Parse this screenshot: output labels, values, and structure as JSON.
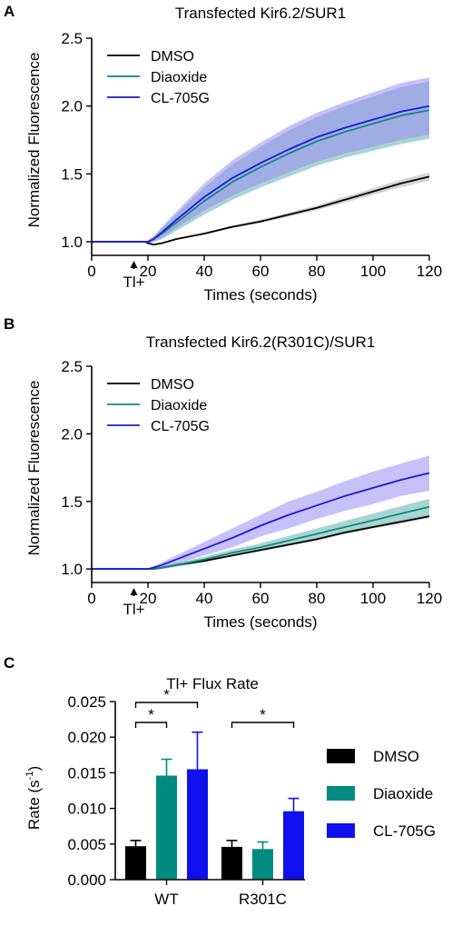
{
  "panels": {
    "a": {
      "label": "A"
    },
    "b": {
      "label": "B"
    },
    "c": {
      "label": "C"
    }
  },
  "colors": {
    "dmso": "#000000",
    "dmso_band": "#b0b0b0",
    "diaoxide": "#13877e",
    "diaoxide_band": "#5fb4ad",
    "cl705g": "#1a1adb",
    "cl705g_band": "#9b8df2",
    "bar_dmso": "#000000",
    "bar_diaoxide": "#008a80",
    "bar_cl705g": "#1010ee"
  },
  "chart_data": [
    {
      "type": "line",
      "title": "Transfected Kir6.2/SUR1",
      "xlabel": "Times (seconds)",
      "ylabel": "Normalized Fluorescence",
      "xlim": [
        0,
        120
      ],
      "ylim": [
        0.9,
        2.5
      ],
      "xticks": [
        0,
        20,
        40,
        60,
        80,
        100,
        120
      ],
      "yticks": [
        1.0,
        1.5,
        2.0,
        2.5
      ],
      "annotation": {
        "text": "Tl+",
        "x": 15
      },
      "legend": "top-left",
      "x": [
        0,
        10,
        17,
        19,
        20,
        22,
        25,
        30,
        40,
        50,
        60,
        70,
        80,
        90,
        100,
        110,
        120
      ],
      "series": [
        {
          "name": "DMSO",
          "color_key": "dmso",
          "band_key": "dmso_band",
          "values": [
            1.0,
            1.0,
            1.0,
            1.0,
            0.99,
            0.98,
            0.99,
            1.02,
            1.06,
            1.11,
            1.15,
            1.2,
            1.25,
            1.31,
            1.37,
            1.43,
            1.48
          ],
          "band": [
            0.005,
            0.005,
            0.005,
            0.005,
            0.005,
            0.005,
            0.005,
            0.006,
            0.008,
            0.01,
            0.012,
            0.015,
            0.018,
            0.022,
            0.025,
            0.028,
            0.03
          ]
        },
        {
          "name": "Diaoxide",
          "color_key": "diaoxide",
          "band_key": "diaoxide_band",
          "values": [
            1.0,
            1.0,
            1.0,
            1.0,
            1.0,
            1.02,
            1.06,
            1.14,
            1.3,
            1.44,
            1.55,
            1.65,
            1.74,
            1.81,
            1.87,
            1.93,
            1.97
          ],
          "band": [
            0.005,
            0.005,
            0.005,
            0.005,
            0.01,
            0.02,
            0.04,
            0.06,
            0.1,
            0.13,
            0.15,
            0.17,
            0.18,
            0.19,
            0.2,
            0.21,
            0.21
          ]
        },
        {
          "name": "CL-705G",
          "color_key": "cl705g",
          "band_key": "cl705g_band",
          "values": [
            1.0,
            1.0,
            1.0,
            1.0,
            1.0,
            1.02,
            1.07,
            1.16,
            1.33,
            1.47,
            1.58,
            1.68,
            1.77,
            1.84,
            1.9,
            1.96,
            2.0
          ],
          "band": [
            0.005,
            0.005,
            0.005,
            0.005,
            0.01,
            0.02,
            0.04,
            0.06,
            0.1,
            0.13,
            0.15,
            0.17,
            0.18,
            0.19,
            0.2,
            0.21,
            0.21
          ]
        }
      ]
    },
    {
      "type": "line",
      "title": "Transfected Kir6.2(R301C)/SUR1",
      "xlabel": "Times (seconds)",
      "ylabel": "Normalized Fluorescence",
      "xlim": [
        0,
        120
      ],
      "ylim": [
        0.9,
        2.5
      ],
      "xticks": [
        0,
        20,
        40,
        60,
        80,
        100,
        120
      ],
      "yticks": [
        1.0,
        1.5,
        2.0,
        2.5
      ],
      "annotation": {
        "text": "Tl+",
        "x": 15
      },
      "legend": "top-left",
      "x": [
        0,
        10,
        17,
        19,
        20,
        22,
        25,
        30,
        40,
        50,
        60,
        70,
        80,
        90,
        100,
        110,
        120
      ],
      "series": [
        {
          "name": "DMSO",
          "color_key": "dmso",
          "band_key": "dmso_band",
          "values": [
            1.0,
            1.0,
            1.0,
            1.0,
            1.0,
            1.0,
            1.01,
            1.03,
            1.06,
            1.1,
            1.14,
            1.18,
            1.22,
            1.27,
            1.31,
            1.35,
            1.39
          ],
          "band": [
            0.005,
            0.005,
            0.005,
            0.005,
            0.005,
            0.005,
            0.005,
            0.005,
            0.006,
            0.007,
            0.008,
            0.009,
            0.01,
            0.011,
            0.012,
            0.013,
            0.014
          ]
        },
        {
          "name": "Diaoxide",
          "color_key": "diaoxide",
          "band_key": "diaoxide_band",
          "values": [
            1.0,
            1.0,
            1.0,
            1.0,
            1.0,
            1.0,
            1.01,
            1.03,
            1.07,
            1.12,
            1.16,
            1.21,
            1.26,
            1.31,
            1.36,
            1.41,
            1.46
          ],
          "band": [
            0.005,
            0.005,
            0.005,
            0.005,
            0.005,
            0.008,
            0.01,
            0.015,
            0.02,
            0.025,
            0.03,
            0.035,
            0.04,
            0.045,
            0.05,
            0.055,
            0.06
          ]
        },
        {
          "name": "CL-705G",
          "color_key": "cl705g",
          "band_key": "cl705g_band",
          "values": [
            1.0,
            1.0,
            1.0,
            1.0,
            1.0,
            1.01,
            1.03,
            1.07,
            1.15,
            1.23,
            1.32,
            1.4,
            1.47,
            1.54,
            1.6,
            1.66,
            1.71
          ],
          "band": [
            0.005,
            0.005,
            0.005,
            0.005,
            0.005,
            0.01,
            0.02,
            0.03,
            0.05,
            0.07,
            0.08,
            0.1,
            0.1,
            0.11,
            0.12,
            0.12,
            0.13
          ]
        }
      ]
    },
    {
      "type": "bar",
      "title": "Tl+ Flux Rate",
      "ylabel_main": "Rate (s",
      "ylabel_sup": "-1",
      "ylabel_end": ")",
      "ylim": [
        0,
        0.025
      ],
      "yticks": [
        "0.000",
        "0.005",
        "0.010",
        "0.015",
        "0.020",
        "0.025"
      ],
      "categories": [
        "WT",
        "R301C"
      ],
      "legend": "right",
      "series": [
        {
          "name": "DMSO",
          "color_key": "bar_dmso",
          "values": [
            0.0047,
            0.0046
          ],
          "errors": [
            0.0008,
            0.0009
          ]
        },
        {
          "name": "Diaoxide",
          "color_key": "bar_diaoxide",
          "values": [
            0.0146,
            0.0043
          ],
          "errors": [
            0.0023,
            0.001
          ]
        },
        {
          "name": "CL-705G",
          "color_key": "bar_cl705g",
          "values": [
            0.0155,
            0.0096
          ],
          "errors": [
            0.0052,
            0.0018
          ]
        }
      ],
      "significance": [
        {
          "category": 0,
          "from": 0,
          "to": 1,
          "label": "*"
        },
        {
          "category": 0,
          "from": 0,
          "to": 2,
          "label": "*"
        },
        {
          "category": 1,
          "from": 0,
          "to": 2,
          "label": "*"
        }
      ]
    }
  ]
}
